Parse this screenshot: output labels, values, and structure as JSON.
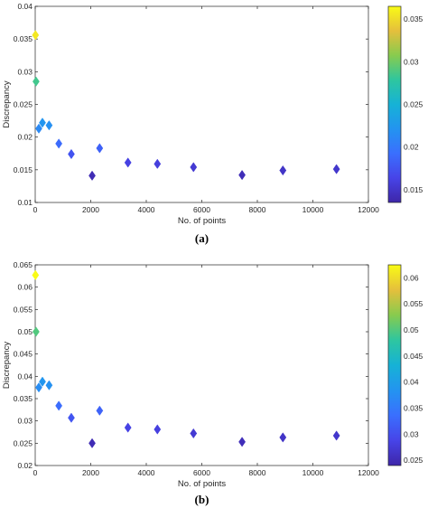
{
  "chart_data": [
    {
      "type": "scatter",
      "panel_label": "(a)",
      "xlabel": "No. of points",
      "ylabel": "Discrepancy",
      "xlim": [
        0,
        12000
      ],
      "ylim": [
        0.01,
        0.04
      ],
      "xticks": [
        0,
        2000,
        4000,
        6000,
        8000,
        10000,
        12000
      ],
      "xtick_labels": [
        "0",
        "2000",
        "4000",
        "6000",
        "8000",
        "10000",
        "12000"
      ],
      "yticks": [
        0.01,
        0.015,
        0.02,
        0.025,
        0.03,
        0.035,
        0.04
      ],
      "ytick_labels": [
        "0.01",
        "0.015",
        "0.02",
        "0.025",
        "0.03",
        "0.035",
        "0.04"
      ],
      "marker": "diamond",
      "colormap": "parula",
      "colorbar": {
        "range": [
          0.0135,
          0.0365
        ],
        "ticks": [
          0.015,
          0.02,
          0.025,
          0.03,
          0.035
        ],
        "tick_labels": [
          "0.015",
          "0.02",
          "0.025",
          "0.03",
          "0.035"
        ]
      },
      "points": [
        {
          "x": 10,
          "y": 0.0356
        },
        {
          "x": 30,
          "y": 0.0285
        },
        {
          "x": 130,
          "y": 0.0213
        },
        {
          "x": 260,
          "y": 0.0222
        },
        {
          "x": 500,
          "y": 0.0218
        },
        {
          "x": 850,
          "y": 0.019
        },
        {
          "x": 1300,
          "y": 0.0174
        },
        {
          "x": 2050,
          "y": 0.0141
        },
        {
          "x": 2320,
          "y": 0.0183
        },
        {
          "x": 3340,
          "y": 0.0161
        },
        {
          "x": 4400,
          "y": 0.0159
        },
        {
          "x": 5700,
          "y": 0.0154
        },
        {
          "x": 7450,
          "y": 0.0142
        },
        {
          "x": 8920,
          "y": 0.0149
        },
        {
          "x": 10850,
          "y": 0.0151
        }
      ]
    },
    {
      "type": "scatter",
      "panel_label": "(b)",
      "xlabel": "No. of points",
      "ylabel": "Discrepancy",
      "xlim": [
        0,
        12000
      ],
      "ylim": [
        0.02,
        0.065
      ],
      "xticks": [
        0,
        2000,
        4000,
        6000,
        8000,
        10000,
        12000
      ],
      "xtick_labels": [
        "0",
        "2000",
        "4000",
        "6000",
        "8000",
        "10000",
        "12000"
      ],
      "yticks": [
        0.02,
        0.025,
        0.03,
        0.035,
        0.04,
        0.045,
        0.05,
        0.055,
        0.06,
        0.065
      ],
      "ytick_labels": [
        "0.02",
        "0.025",
        "0.03",
        "0.035",
        "0.04",
        "0.045",
        "0.05",
        "0.055",
        "0.06",
        "0.065"
      ],
      "marker": "diamond",
      "colormap": "parula",
      "colorbar": {
        "range": [
          0.024,
          0.0625
        ],
        "ticks": [
          0.025,
          0.03,
          0.035,
          0.04,
          0.045,
          0.05,
          0.055,
          0.06
        ],
        "tick_labels": [
          "0.025",
          "0.03",
          "0.035",
          "0.04",
          "0.045",
          "0.05",
          "0.055",
          "0.06"
        ]
      },
      "points": [
        {
          "x": 10,
          "y": 0.0627
        },
        {
          "x": 30,
          "y": 0.05
        },
        {
          "x": 130,
          "y": 0.0375
        },
        {
          "x": 260,
          "y": 0.0388
        },
        {
          "x": 500,
          "y": 0.038
        },
        {
          "x": 850,
          "y": 0.0334
        },
        {
          "x": 1300,
          "y": 0.0307
        },
        {
          "x": 2050,
          "y": 0.025
        },
        {
          "x": 2320,
          "y": 0.0323
        },
        {
          "x": 3340,
          "y": 0.0285
        },
        {
          "x": 4400,
          "y": 0.0281
        },
        {
          "x": 5700,
          "y": 0.0272
        },
        {
          "x": 7450,
          "y": 0.0253
        },
        {
          "x": 8920,
          "y": 0.0263
        },
        {
          "x": 10850,
          "y": 0.0267
        }
      ]
    }
  ]
}
